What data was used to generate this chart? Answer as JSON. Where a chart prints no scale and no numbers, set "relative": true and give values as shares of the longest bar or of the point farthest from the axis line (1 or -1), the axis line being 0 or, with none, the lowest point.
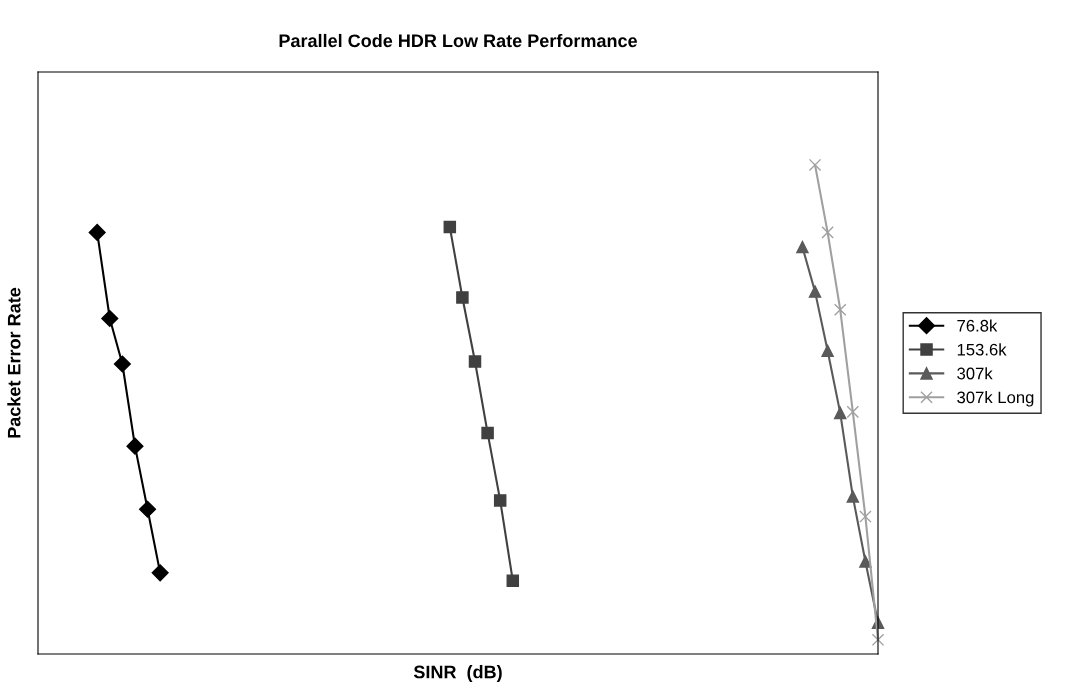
{
  "chart_data": {
    "type": "line",
    "title": "Parallel Code HDR Low Rate Performance",
    "xlabel": "SINR  (dB)",
    "ylabel": "Packet Error Rate",
    "relative": true,
    "tick_labels": false,
    "legend": "right",
    "categories": [
      null,
      null,
      null,
      null,
      null,
      null,
      null,
      null,
      null,
      null,
      null,
      null,
      null,
      null,
      null,
      null,
      null,
      null,
      null,
      null,
      null,
      null,
      null,
      null,
      null,
      null,
      null,
      null,
      null,
      null,
      null,
      null,
      null,
      null,
      null,
      null,
      null,
      null,
      null,
      null,
      null,
      null,
      null,
      null,
      null,
      null,
      null,
      null,
      null,
      null,
      null,
      null,
      null,
      null,
      null,
      null,
      null,
      null,
      null,
      null,
      null,
      null,
      null
    ],
    "series": [
      {
        "name": "76.8k",
        "color": "#000000",
        "marker": "diamond",
        "values": [
          0.862,
          0.686,
          0.593,
          0.425,
          0.296,
          0.166,
          null,
          null,
          null,
          null,
          null,
          null,
          null,
          null,
          null,
          null,
          null,
          null,
          null,
          null,
          null,
          null,
          null,
          null,
          null,
          null,
          null,
          null,
          null,
          null,
          null,
          null,
          null,
          null,
          null,
          null,
          null,
          null,
          null,
          null,
          null,
          null,
          null,
          null,
          null,
          null,
          null,
          null,
          null,
          null,
          null,
          null,
          null,
          null,
          null,
          null,
          null,
          null,
          null,
          null,
          null,
          null,
          null
        ]
      },
      {
        "name": "153.6k",
        "color": "#404040",
        "marker": "square",
        "values": [
          null,
          null,
          null,
          null,
          null,
          null,
          null,
          null,
          null,
          null,
          null,
          null,
          null,
          null,
          null,
          null,
          null,
          null,
          null,
          null,
          null,
          null,
          null,
          null,
          null,
          null,
          null,
          null,
          0.873,
          0.729,
          0.598,
          0.452,
          0.314,
          0.15,
          null,
          null,
          null,
          null,
          null,
          null,
          null,
          null,
          null,
          null,
          null,
          null,
          null,
          null,
          null,
          null,
          null,
          null,
          null,
          null,
          null,
          null,
          null,
          null,
          null,
          null,
          null,
          null,
          null
        ]
      },
      {
        "name": "307k",
        "color": "#5a5a5a",
        "marker": "triangle",
        "values": [
          null,
          null,
          null,
          null,
          null,
          null,
          null,
          null,
          null,
          null,
          null,
          null,
          null,
          null,
          null,
          null,
          null,
          null,
          null,
          null,
          null,
          null,
          null,
          null,
          null,
          null,
          null,
          null,
          null,
          null,
          null,
          null,
          null,
          null,
          null,
          null,
          null,
          null,
          null,
          null,
          null,
          null,
          null,
          null,
          null,
          null,
          null,
          null,
          null,
          null,
          null,
          null,
          null,
          null,
          null,
          null,
          0.832,
          0.741,
          0.62,
          0.493,
          0.322,
          0.189,
          0.064
        ]
      },
      {
        "name": "307k Long",
        "color": "#a0a0a0",
        "marker": "cross",
        "values": [
          null,
          null,
          null,
          null,
          null,
          null,
          null,
          null,
          null,
          null,
          null,
          null,
          null,
          null,
          null,
          null,
          null,
          null,
          null,
          null,
          null,
          null,
          null,
          null,
          null,
          null,
          null,
          null,
          null,
          null,
          null,
          null,
          null,
          null,
          null,
          null,
          null,
          null,
          null,
          null,
          null,
          null,
          null,
          null,
          null,
          null,
          null,
          null,
          null,
          null,
          null,
          null,
          null,
          null,
          null,
          null,
          null,
          1.0,
          0.862,
          0.704,
          0.495,
          0.281,
          0.029
        ]
      }
    ]
  }
}
